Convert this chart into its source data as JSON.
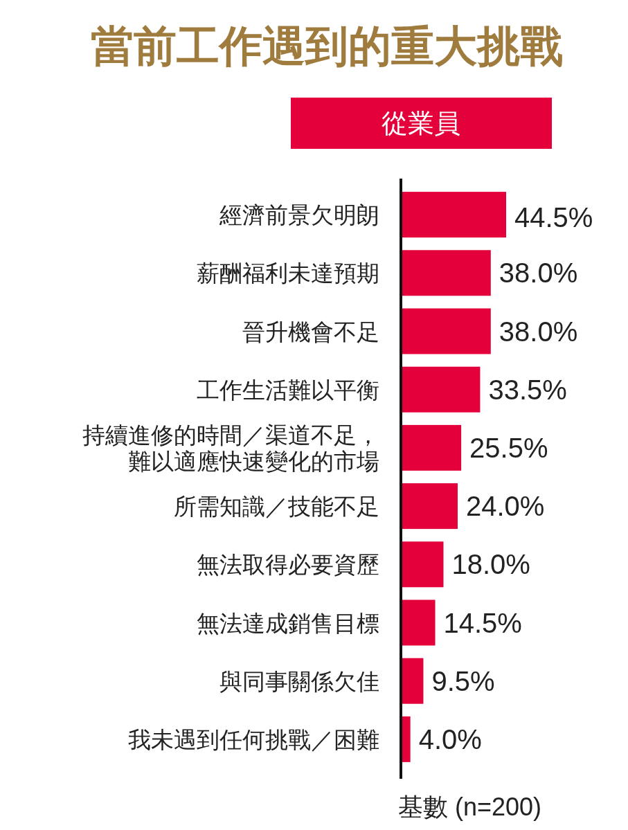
{
  "chart_data": {
    "type": "bar",
    "orientation": "horizontal",
    "title": "當前工作遇到的重大挑戰",
    "subtitle": "從業員",
    "categories": [
      "經濟前景欠明朗",
      "薪酬福利未達預期",
      "晉升機會不足",
      "工作生活難以平衡",
      "持續進修的時間／渠道不足，難以適應快速變化的市場",
      "所需知識／技能不足",
      "無法取得必要資歷",
      "無法達成銷售目標",
      "與同事關係欠佳",
      "我未遇到任何挑戰／困難"
    ],
    "values": [
      44.5,
      38.0,
      38.0,
      33.5,
      25.5,
      24.0,
      18.0,
      14.5,
      9.5,
      4.0
    ],
    "value_labels": [
      "44.5%",
      "38.0%",
      "38.0%",
      "33.5%",
      "25.5%",
      "24.0%",
      "18.0%",
      "14.5%",
      "9.5%",
      "4.0%"
    ],
    "color": "#e4003a",
    "annotations": [
      "基數 (n=200)"
    ]
  }
}
